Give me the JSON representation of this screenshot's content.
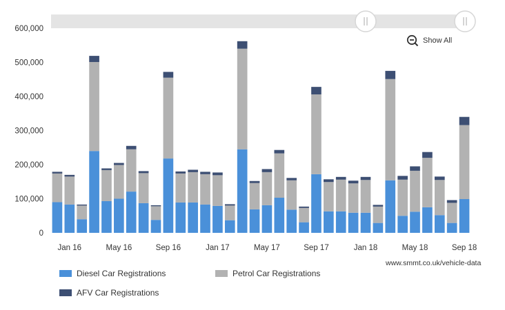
{
  "colors": {
    "diesel": "#4a90d9",
    "petrol": "#b2b2b2",
    "afv": "#3d4f73",
    "navigator": "#e4e4e4"
  },
  "zoom": {
    "show_all_label": "Show All",
    "icon": "zoom-out-icon"
  },
  "credit": "www.smmt.co.uk/vehicle-data",
  "chart_data": {
    "type": "bar",
    "stacked": true,
    "grid": false,
    "legend_position": "bottom-left",
    "ylim": [
      0,
      600000
    ],
    "yticks": [
      {
        "v": 0,
        "label": "0"
      },
      {
        "v": 100000,
        "label": "100,000"
      },
      {
        "v": 200000,
        "label": "200,000"
      },
      {
        "v": 300000,
        "label": "300,000"
      },
      {
        "v": 400000,
        "label": "400,000"
      },
      {
        "v": 500000,
        "label": "500,000"
      },
      {
        "v": 600000,
        "label": "600,000"
      }
    ],
    "xticks": [
      {
        "i": 1,
        "label": "Jan 16"
      },
      {
        "i": 5,
        "label": "May 16"
      },
      {
        "i": 9,
        "label": "Sep 16"
      },
      {
        "i": 13,
        "label": "Jan 17"
      },
      {
        "i": 17,
        "label": "May 17"
      },
      {
        "i": 21,
        "label": "Sep 17"
      },
      {
        "i": 25,
        "label": "Jan 18"
      },
      {
        "i": 29,
        "label": "May 18"
      },
      {
        "i": 33,
        "label": "Sep 18"
      }
    ],
    "series": [
      {
        "name": "Diesel Car Registrations",
        "values": [
          90000,
          83000,
          40000,
          240000,
          93000,
          100000,
          121000,
          87000,
          38000,
          218000,
          89000,
          89000,
          83000,
          79000,
          37000,
          245000,
          69000,
          81000,
          103000,
          68000,
          31000,
          172000,
          63000,
          63000,
          59000,
          59000,
          29000,
          154000,
          50000,
          62000,
          75000,
          52000,
          29000,
          99000
        ]
      },
      {
        "name": "Petrol Car Registrations",
        "values": [
          84000,
          82000,
          40000,
          261000,
          91000,
          99000,
          124000,
          88000,
          40000,
          237000,
          85000,
          89000,
          89000,
          90000,
          43000,
          295000,
          77000,
          97000,
          130000,
          86000,
          42000,
          234000,
          86000,
          93000,
          86000,
          96000,
          48000,
          297000,
          106000,
          120000,
          145000,
          103000,
          59000,
          217000
        ]
      },
      {
        "name": "AFV Car Registrations",
        "values": [
          5000,
          5000,
          3000,
          18000,
          5000,
          6000,
          10000,
          6000,
          3000,
          17000,
          6000,
          7000,
          7000,
          8000,
          4000,
          22000,
          6000,
          9000,
          10000,
          7000,
          4000,
          22000,
          8000,
          8000,
          8000,
          9000,
          5000,
          24000,
          11000,
          13000,
          17000,
          10000,
          8000,
          24000
        ]
      }
    ]
  }
}
